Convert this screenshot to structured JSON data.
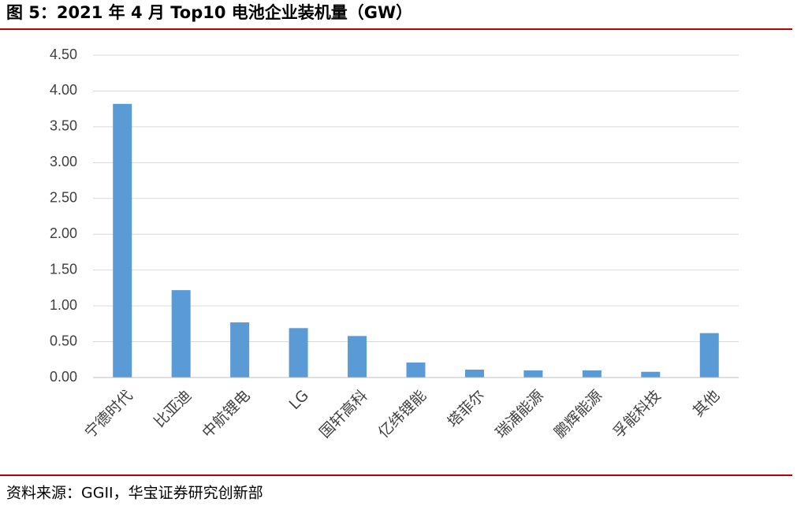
{
  "chart_data": {
    "type": "bar",
    "title": "图 5：2021 年 4 月 Top10 电池企业装机量（GW）",
    "source": "资料来源：GGII，华宝证券研究创新部",
    "categories": [
      "宁德时代",
      "比亚迪",
      "中航锂电",
      "LG",
      "国轩高科",
      "亿纬锂能",
      "塔菲尔",
      "瑞浦能源",
      "鹏辉能源",
      "孚能科技",
      "其他"
    ],
    "values": [
      3.82,
      1.22,
      0.77,
      0.69,
      0.58,
      0.21,
      0.11,
      0.1,
      0.1,
      0.08,
      0.62
    ],
    "color": "#5b9bd5",
    "ylim": [
      0,
      4.5
    ],
    "yticks": [
      {
        "value": 0,
        "label": "0.00"
      },
      {
        "value": 0.5,
        "label": "0.50"
      },
      {
        "value": 1,
        "label": "1.00"
      },
      {
        "value": 1.5,
        "label": "1.50"
      },
      {
        "value": 2,
        "label": "2.00"
      },
      {
        "value": 2.5,
        "label": "2.50"
      },
      {
        "value": 3,
        "label": "3.00"
      },
      {
        "value": 3.5,
        "label": "3.50"
      },
      {
        "value": 4,
        "label": "4.00"
      },
      {
        "value": 4.5,
        "label": "4.50"
      }
    ],
    "grid": true
  }
}
